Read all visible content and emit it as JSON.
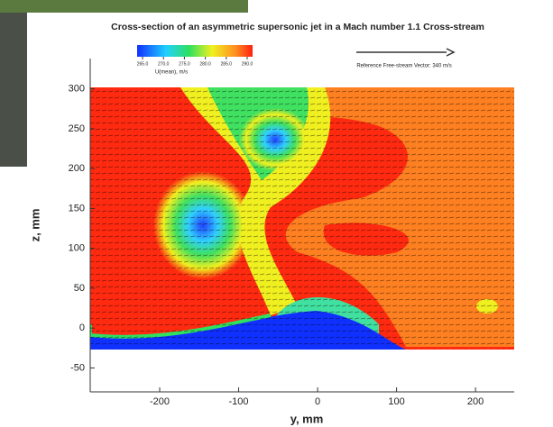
{
  "chart_data": {
    "type": "contour",
    "title": "Cross-section of an asymmetric supersonic jet in a Mach number 1.1 Cross-stream",
    "xlabel": "y, mm",
    "ylabel": "z, mm",
    "xlim": [
      -288,
      249
    ],
    "xticks": [
      -200,
      -100,
      0,
      100,
      200
    ],
    "ylim": [
      -80,
      338
    ],
    "yticks": [
      -50,
      0,
      50,
      100,
      150,
      200,
      250,
      300
    ],
    "colorbar": {
      "title": "U(mean), m/s",
      "ticks": [
        265.0,
        270.0,
        275.0,
        280.0,
        285.0,
        290.0
      ],
      "tick_labels": [
        "265.0",
        "270.0",
        "275.0",
        "280.0",
        "285.0",
        "290.0"
      ]
    },
    "reference_vector": "Reference Free-stream Vector: 340 m/s"
  }
}
